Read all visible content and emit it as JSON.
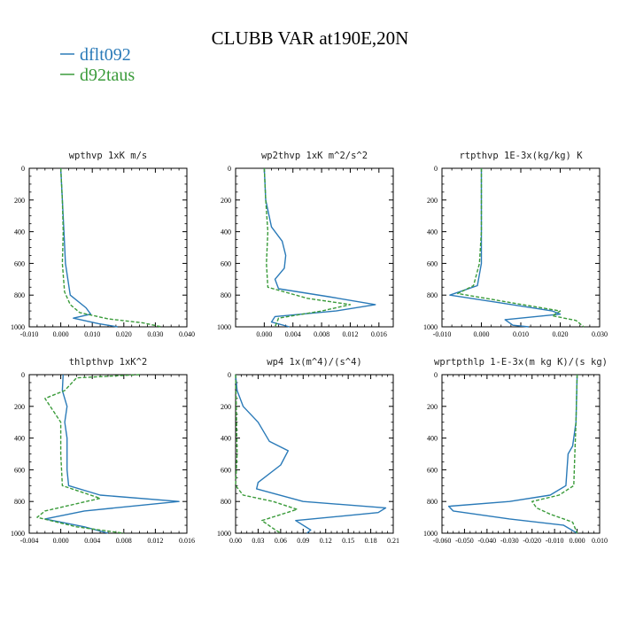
{
  "figure": {
    "title": "CLUBB VAR at190E,20N",
    "legend": [
      {
        "name": "dflt092",
        "color": "#2a7ab8",
        "dash": "solid"
      },
      {
        "name": "d92taus",
        "color": "#3a9b3a",
        "dash": "dashed"
      }
    ]
  },
  "chart_data": [
    {
      "type": "line",
      "title": "wpthvp  1xK m/s",
      "xlim": [
        -0.01,
        0.04
      ],
      "xticks": [
        "-0.010",
        "0.000",
        "0.010",
        "0.020",
        "0.030",
        "0.040"
      ],
      "ylim": [
        0,
        1000
      ],
      "yticks": [
        "0",
        "200",
        "400",
        "600",
        "800",
        "1000"
      ],
      "y_inverted": true,
      "series": [
        {
          "name": "dflt092",
          "points": [
            [
              0.0,
              0
            ],
            [
              0.0005,
              200
            ],
            [
              0.001,
              400
            ],
            [
              0.0015,
              600
            ],
            [
              0.003,
              800
            ],
            [
              0.008,
              880
            ],
            [
              0.0095,
              920
            ],
            [
              0.004,
              945
            ],
            [
              0.012,
              980
            ],
            [
              0.018,
              1000
            ]
          ]
        },
        {
          "name": "d92taus",
          "points": [
            [
              0.0,
              0
            ],
            [
              0.0005,
              200
            ],
            [
              0.0008,
              400
            ],
            [
              0.0005,
              600
            ],
            [
              0.0012,
              780
            ],
            [
              0.003,
              860
            ],
            [
              0.006,
              910
            ],
            [
              0.015,
              950
            ],
            [
              0.026,
              975
            ],
            [
              0.032,
              1000
            ]
          ]
        }
      ]
    },
    {
      "type": "line",
      "title": "wp2thvp  1xK m^2/s^2",
      "xlim": [
        -0.004,
        0.018
      ],
      "xticks": [
        "0.000",
        "0.004",
        "0.008",
        "0.012",
        "0.016"
      ],
      "ylim": [
        0,
        1000
      ],
      "yticks": [
        "0",
        "200",
        "400",
        "600",
        "800",
        "1000"
      ],
      "y_inverted": true,
      "series": [
        {
          "name": "dflt092",
          "points": [
            [
              0.0,
              0
            ],
            [
              0.0002,
              200
            ],
            [
              0.001,
              370
            ],
            [
              0.0025,
              460
            ],
            [
              0.003,
              550
            ],
            [
              0.0028,
              630
            ],
            [
              0.0015,
              700
            ],
            [
              0.002,
              760
            ],
            [
              0.009,
              810
            ],
            [
              0.0155,
              860
            ],
            [
              0.01,
              900
            ],
            [
              0.0015,
              935
            ],
            [
              0.001,
              970
            ],
            [
              0.0035,
              1000
            ]
          ]
        },
        {
          "name": "d92taus",
          "points": [
            [
              0.0,
              0
            ],
            [
              0.0002,
              200
            ],
            [
              0.0005,
              400
            ],
            [
              0.0003,
              600
            ],
            [
              0.0005,
              750
            ],
            [
              0.006,
              820
            ],
            [
              0.012,
              860
            ],
            [
              0.008,
              900
            ],
            [
              0.002,
              945
            ],
            [
              0.0015,
              1000
            ]
          ]
        }
      ]
    },
    {
      "type": "line",
      "title": "rtpthvp  1E-3x(kg/kg) K",
      "xlim": [
        -0.01,
        0.03
      ],
      "xticks": [
        "-0.010",
        "0.000",
        "0.010",
        "0.020",
        "0.030"
      ],
      "ylim": [
        0,
        1000
      ],
      "yticks": [
        "0",
        "200",
        "400",
        "600",
        "800",
        "1000"
      ],
      "y_inverted": true,
      "series": [
        {
          "name": "dflt092",
          "points": [
            [
              0.0,
              0
            ],
            [
              0.0,
              400
            ],
            [
              0.0,
              600
            ],
            [
              -0.001,
              740
            ],
            [
              -0.008,
              800
            ],
            [
              0.005,
              850
            ],
            [
              0.018,
              900
            ],
            [
              0.02,
              920
            ],
            [
              0.006,
              955
            ],
            [
              0.008,
              990
            ],
            [
              0.012,
              1000
            ]
          ]
        },
        {
          "name": "d92taus",
          "points": [
            [
              0.0,
              0
            ],
            [
              0.0,
              400
            ],
            [
              -0.0005,
              600
            ],
            [
              -0.002,
              740
            ],
            [
              -0.006,
              790
            ],
            [
              0.008,
              850
            ],
            [
              0.02,
              900
            ],
            [
              0.018,
              930
            ],
            [
              0.024,
              960
            ],
            [
              0.026,
              1000
            ]
          ]
        }
      ]
    },
    {
      "type": "line",
      "title": "thlpthvp  1xK^2",
      "xlim": [
        -0.004,
        0.016
      ],
      "xticks": [
        "-0.004",
        "0.000",
        "0.004",
        "0.008",
        "0.012",
        "0.016"
      ],
      "ylim": [
        0,
        1000
      ],
      "yticks": [
        "0",
        "200",
        "400",
        "600",
        "800",
        "1000"
      ],
      "y_inverted": true,
      "series": [
        {
          "name": "dflt092",
          "points": [
            [
              0.0003,
              0
            ],
            [
              0.0002,
              100
            ],
            [
              0.0008,
              200
            ],
            [
              0.0005,
              300
            ],
            [
              0.0008,
              400
            ],
            [
              0.0008,
              600
            ],
            [
              0.001,
              700
            ],
            [
              0.005,
              760
            ],
            [
              0.015,
              800
            ],
            [
              0.003,
              860
            ],
            [
              -0.002,
              910
            ],
            [
              0.003,
              960
            ],
            [
              0.006,
              1000
            ]
          ]
        },
        {
          "name": "d92taus",
          "points": [
            [
              0.01,
              0
            ],
            [
              0.002,
              20
            ],
            [
              0.0005,
              100
            ],
            [
              -0.002,
              150
            ],
            [
              0.0,
              300
            ],
            [
              0.0,
              500
            ],
            [
              0.0002,
              700
            ],
            [
              0.005,
              780
            ],
            [
              -0.002,
              860
            ],
            [
              -0.003,
              900
            ],
            [
              0.002,
              960
            ],
            [
              0.008,
              1000
            ]
          ]
        }
      ]
    },
    {
      "type": "line",
      "title": "wp4  1x(m^4)/(s^4)",
      "xlim": [
        0.0,
        0.21
      ],
      "xticks": [
        "0.00",
        "0.03",
        "0.06",
        "0.09",
        "0.12",
        "0.15",
        "0.18",
        "0.21"
      ],
      "ylim": [
        0,
        1000
      ],
      "yticks": [
        "0",
        "200",
        "400",
        "600",
        "800",
        "1000"
      ],
      "y_inverted": true,
      "series": [
        {
          "name": "dflt092",
          "points": [
            [
              0.0,
              0
            ],
            [
              0.002,
              100
            ],
            [
              0.01,
              200
            ],
            [
              0.03,
              300
            ],
            [
              0.045,
              420
            ],
            [
              0.07,
              480
            ],
            [
              0.06,
              570
            ],
            [
              0.03,
              680
            ],
            [
              0.028,
              720
            ],
            [
              0.09,
              800
            ],
            [
              0.2,
              840
            ],
            [
              0.19,
              870
            ],
            [
              0.08,
              920
            ],
            [
              0.1,
              980
            ],
            [
              0.095,
              1000
            ]
          ]
        },
        {
          "name": "d92taus",
          "points": [
            [
              0.0,
              0
            ],
            [
              0.001,
              200
            ],
            [
              0.002,
              500
            ],
            [
              0.0,
              700
            ],
            [
              0.01,
              760
            ],
            [
              0.05,
              800
            ],
            [
              0.082,
              850
            ],
            [
              0.035,
              920
            ],
            [
              0.05,
              970
            ],
            [
              0.06,
              1000
            ]
          ]
        }
      ]
    },
    {
      "type": "line",
      "title": "wprtpthlp  1-E-3x(m kg K)/(s kg)",
      "xlim": [
        -0.06,
        0.01
      ],
      "xticks": [
        "-0.060",
        "-0.050",
        "-0.040",
        "-0.030",
        "-0.020",
        "-0.010",
        "0.000",
        "0.010"
      ],
      "ylim": [
        0,
        1000
      ],
      "yticks": [
        "0",
        "200",
        "400",
        "600",
        "800",
        "1000"
      ],
      "y_inverted": true,
      "series": [
        {
          "name": "dflt092",
          "points": [
            [
              0.0,
              0
            ],
            [
              -0.0005,
              300
            ],
            [
              -0.002,
              450
            ],
            [
              -0.004,
              500
            ],
            [
              -0.005,
              700
            ],
            [
              -0.012,
              760
            ],
            [
              -0.03,
              800
            ],
            [
              -0.057,
              830
            ],
            [
              -0.055,
              860
            ],
            [
              -0.03,
              910
            ],
            [
              -0.006,
              950
            ],
            [
              0.0,
              1000
            ]
          ]
        },
        {
          "name": "d92taus",
          "points": [
            [
              0.0,
              0
            ],
            [
              -0.0005,
              300
            ],
            [
              -0.001,
              500
            ],
            [
              -0.0015,
              700
            ],
            [
              -0.008,
              760
            ],
            [
              -0.02,
              800
            ],
            [
              -0.018,
              840
            ],
            [
              -0.012,
              880
            ],
            [
              -0.002,
              930
            ],
            [
              0.0,
              1000
            ]
          ]
        }
      ]
    }
  ]
}
